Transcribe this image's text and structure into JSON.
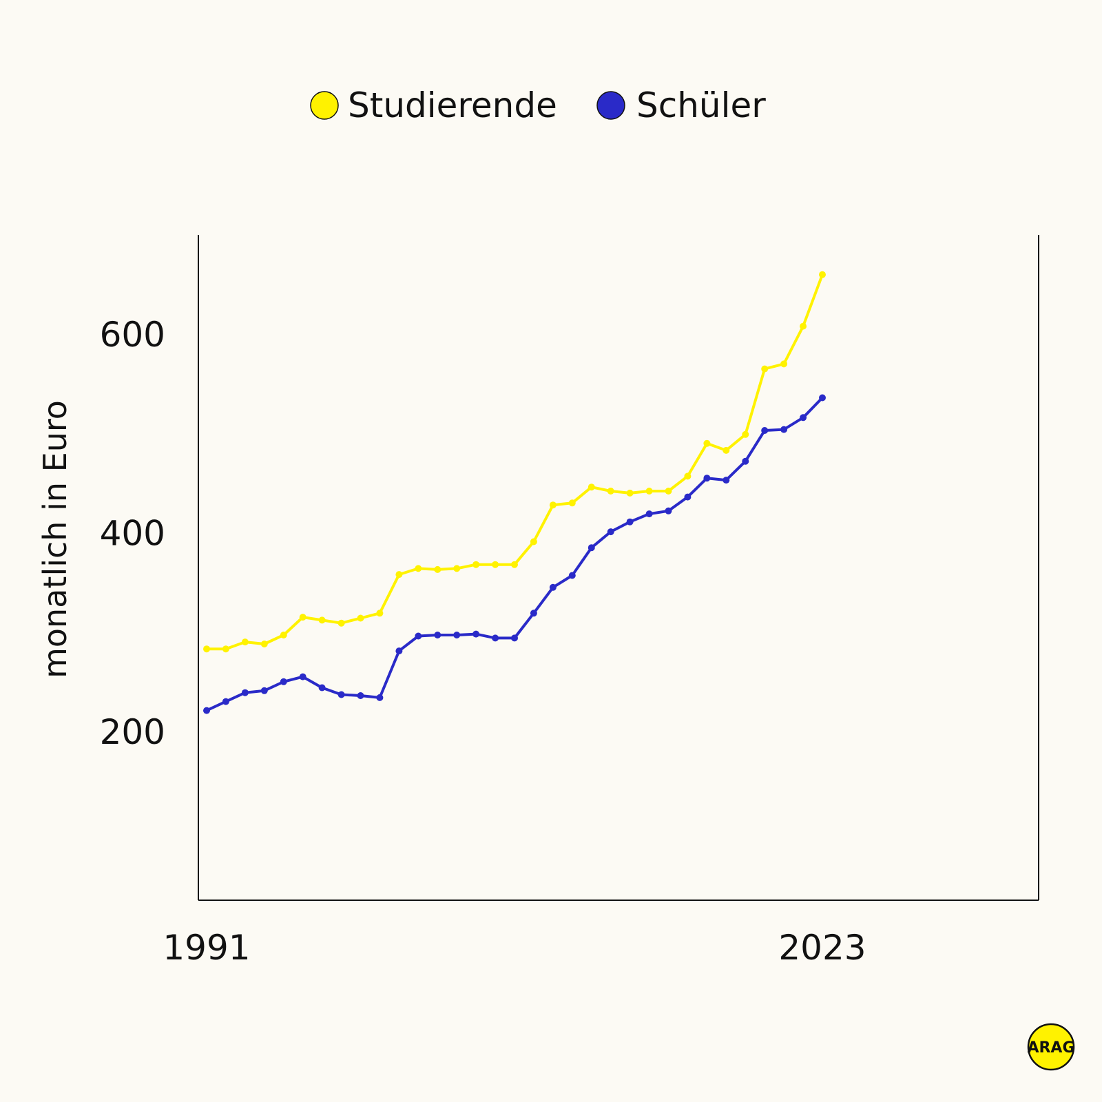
{
  "colors": {
    "background": "#fcfaf4",
    "studierende": "#fff200",
    "schueler": "#2a2ac8",
    "axis": "#111111",
    "logo": "#fff200"
  },
  "legend": [
    {
      "key": "studierende",
      "label": "Studierende"
    },
    {
      "key": "schueler",
      "label": "Schüler"
    }
  ],
  "logo": {
    "text": "ARAG"
  },
  "chart_data": {
    "type": "line",
    "title": "",
    "xlabel": "",
    "ylabel": "monatlich in Euro",
    "x": [
      1991,
      1992,
      1993,
      1994,
      1995,
      1996,
      1997,
      1998,
      1999,
      2000,
      2001,
      2002,
      2003,
      2004,
      2005,
      2006,
      2007,
      2008,
      2009,
      2010,
      2011,
      2012,
      2013,
      2014,
      2015,
      2016,
      2017,
      2018,
      2019,
      2020,
      2021,
      2022,
      2023
    ],
    "x_ticks": [
      "1991",
      "2023"
    ],
    "y_ticks": [
      200,
      400,
      600
    ],
    "ylim": [
      30,
      700
    ],
    "legend_position": "top",
    "grid": false,
    "series": [
      {
        "key": "studierende",
        "name": "Studierende",
        "values": [
          283,
          283,
          290,
          288,
          297,
          315,
          312,
          309,
          314,
          319,
          358,
          364,
          363,
          364,
          368,
          368,
          368,
          391,
          428,
          430,
          446,
          442,
          440,
          442,
          442,
          457,
          490,
          483,
          499,
          565,
          570,
          608,
          660
        ]
      },
      {
        "key": "schueler",
        "name": "Schüler",
        "values": [
          221,
          230,
          239,
          241,
          250,
          255,
          244,
          237,
          236,
          234,
          281,
          296,
          297,
          297,
          298,
          294,
          294,
          319,
          345,
          357,
          385,
          401,
          411,
          419,
          422,
          436,
          455,
          453,
          472,
          503,
          504,
          516,
          536
        ]
      }
    ]
  }
}
